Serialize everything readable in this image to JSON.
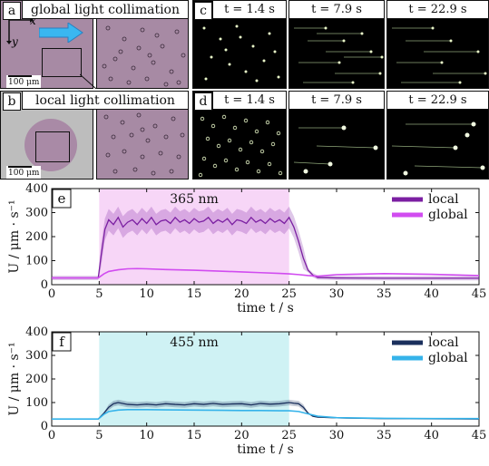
{
  "panels": {
    "a": {
      "letter": "a",
      "title": "global light collimation",
      "scale": "100 μm",
      "axis_x": "x",
      "axis_y": "y"
    },
    "b": {
      "letter": "b",
      "title": "local light collimation",
      "scale": "100 μm"
    },
    "c": {
      "letter": "c",
      "times": [
        "t = 1.4 s",
        "t = 7.9 s",
        "t = 22.9 s"
      ]
    },
    "d": {
      "letter": "d",
      "times": [
        "t = 1.4 s",
        "t = 7.9 s",
        "t = 22.9 s"
      ]
    }
  },
  "colors": {
    "local_365": "#7b1fa2",
    "global_365": "#d14cf0",
    "band_365": "#f7d6f7",
    "local_455": "#1a2f5c",
    "global_455": "#35b3ea",
    "band_455": "#cff2f4"
  },
  "chart_data": [
    {
      "type": "line",
      "panel_letter": "e",
      "annotation": "365 nm",
      "xlabel": "time t / s",
      "ylabel": "U / μm · s⁻¹",
      "xlim": [
        0,
        45
      ],
      "ylim": [
        0,
        400
      ],
      "xticks": [
        0,
        5,
        10,
        15,
        20,
        25,
        30,
        35,
        40,
        45
      ],
      "yticks": [
        0,
        100,
        200,
        300,
        400
      ],
      "illumination": [
        5,
        25
      ],
      "legend": "top-right",
      "series": [
        {
          "name": "local",
          "x": [
            0,
            4.9,
            5.2,
            5.6,
            6,
            6.5,
            7,
            7.5,
            8,
            8.5,
            9,
            9.5,
            10,
            10.5,
            11,
            11.5,
            12,
            12.5,
            13,
            13.5,
            14,
            14.5,
            15,
            15.5,
            16,
            16.5,
            17,
            17.5,
            18,
            18.5,
            19,
            19.5,
            20,
            20.5,
            21,
            21.5,
            22,
            22.5,
            23,
            23.5,
            24,
            24.5,
            25,
            25.5,
            26,
            26.5,
            27,
            27.5,
            28,
            30,
            35,
            40,
            45
          ],
          "y": [
            28,
            28,
            120,
            230,
            270,
            250,
            280,
            240,
            260,
            270,
            250,
            275,
            255,
            280,
            250,
            265,
            270,
            255,
            280,
            260,
            270,
            255,
            275,
            260,
            265,
            280,
            255,
            270,
            260,
            275,
            250,
            270,
            265,
            255,
            280,
            260,
            270,
            255,
            275,
            260,
            270,
            255,
            280,
            240,
            180,
            110,
            60,
            40,
            30,
            28,
            27,
            27,
            27
          ]
        },
        {
          "name": "global",
          "x": [
            0,
            4.9,
            5.5,
            6,
            7,
            8,
            9,
            10,
            12,
            15,
            18,
            20,
            22,
            24,
            25,
            26,
            27,
            28,
            30,
            35,
            40,
            45
          ],
          "y": [
            28,
            28,
            45,
            55,
            62,
            66,
            67,
            66,
            63,
            60,
            56,
            53,
            50,
            47,
            45,
            42,
            38,
            35,
            42,
            46,
            43,
            38
          ]
        }
      ]
    },
    {
      "type": "line",
      "panel_letter": "f",
      "annotation": "455 nm",
      "xlabel": "time t / s",
      "ylabel": "U / μm · s⁻¹",
      "xlim": [
        0,
        45
      ],
      "ylim": [
        0,
        400
      ],
      "xticks": [
        0,
        5,
        10,
        15,
        20,
        25,
        30,
        35,
        40,
        45
      ],
      "yticks": [
        0,
        100,
        200,
        300,
        400
      ],
      "illumination": [
        5,
        25
      ],
      "legend": "top-right",
      "series": [
        {
          "name": "local",
          "x": [
            0,
            4.9,
            5.5,
            6,
            6.5,
            7,
            8,
            9,
            10,
            11,
            12,
            13,
            14,
            15,
            16,
            17,
            18,
            19,
            20,
            21,
            22,
            23,
            24,
            25,
            25.5,
            26,
            26.5,
            27,
            27.5,
            28,
            30,
            35,
            40,
            45
          ],
          "y": [
            30,
            30,
            55,
            80,
            95,
            100,
            92,
            90,
            93,
            90,
            95,
            92,
            90,
            95,
            92,
            96,
            92,
            94,
            95,
            90,
            96,
            93,
            95,
            100,
            97,
            95,
            80,
            55,
            42,
            38,
            35,
            32,
            31,
            30
          ]
        },
        {
          "name": "global",
          "x": [
            0,
            4.9,
            5.5,
            6,
            7,
            8,
            10,
            12,
            15,
            18,
            20,
            22,
            24,
            25,
            26,
            27,
            28,
            30,
            35,
            40,
            45
          ],
          "y": [
            30,
            30,
            50,
            62,
            68,
            70,
            70,
            69,
            68,
            67,
            66,
            66,
            65,
            65,
            62,
            52,
            42,
            36,
            33,
            32,
            32
          ]
        }
      ]
    }
  ]
}
